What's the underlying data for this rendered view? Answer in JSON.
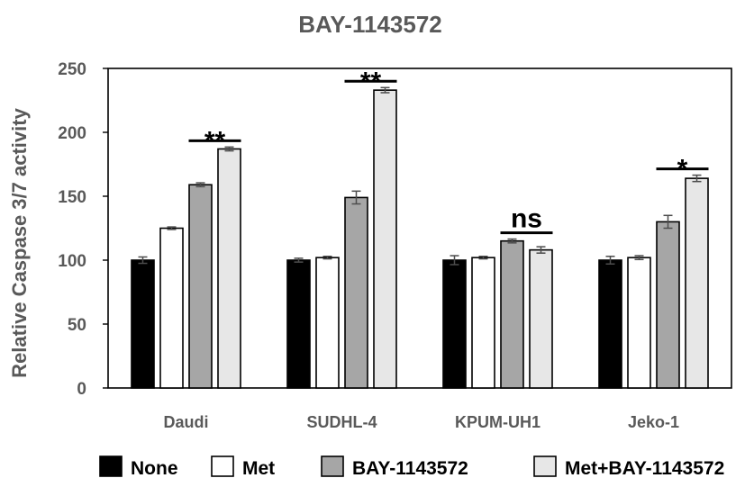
{
  "chart_data": {
    "type": "bar",
    "title": "BAY-1143572",
    "xlabel": "",
    "ylabel": "Relative Caspase 3/7 activity",
    "ylim": [
      0,
      250
    ],
    "yticks": [
      0,
      50,
      100,
      150,
      200,
      250
    ],
    "grid": false,
    "legend_position": "bottom",
    "categories": [
      "Daudi",
      "SUDHL-4",
      "KPUM-UH1",
      "Jeko-1"
    ],
    "series": [
      {
        "name": "None",
        "color": "#000000",
        "values": [
          100,
          100,
          100,
          100
        ],
        "errors": [
          2.5,
          1.5,
          3.5,
          3
        ]
      },
      {
        "name": "Met",
        "color": "#ffffff",
        "values": [
          125,
          102,
          102,
          102
        ],
        "errors": [
          1,
          1,
          1,
          1.5
        ]
      },
      {
        "name": "BAY-1143572",
        "color": "#a6a6a6",
        "values": [
          159,
          149,
          115,
          130
        ],
        "errors": [
          1.5,
          5,
          1.5,
          5
        ]
      },
      {
        "name": "Met+BAY-1143572",
        "color": "#e7e7e7",
        "values": [
          187,
          233,
          108,
          164
        ],
        "errors": [
          1.5,
          2,
          2.5,
          2.5
        ]
      }
    ],
    "annotations": [
      {
        "text": "**",
        "category": "Daudi"
      },
      {
        "text": "**",
        "category": "SUDHL-4"
      },
      {
        "text": "ns",
        "category": "KPUM-UH1"
      },
      {
        "text": "*",
        "category": "Jeko-1"
      }
    ]
  }
}
